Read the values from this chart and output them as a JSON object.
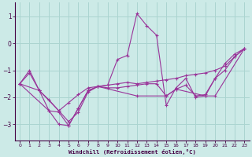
{
  "xlabel": "Windchill (Refroidissement éolien,°C)",
  "background_color": "#cceae7",
  "grid_color": "#aad4d0",
  "line_color": "#993399",
  "xlim": [
    -0.5,
    23.5
  ],
  "ylim": [
    -3.6,
    1.5
  ],
  "yticks": [
    -3,
    -2,
    -1,
    0,
    1
  ],
  "xticks": [
    0,
    1,
    2,
    3,
    4,
    5,
    6,
    7,
    8,
    9,
    10,
    11,
    12,
    13,
    14,
    15,
    16,
    17,
    18,
    19,
    20,
    21,
    22,
    23
  ],
  "series1": [
    [
      0,
      -1.5
    ],
    [
      1,
      -1.0
    ],
    [
      2,
      -1.75
    ],
    [
      3,
      -2.5
    ],
    [
      4,
      -3.0
    ],
    [
      5,
      -3.05
    ],
    [
      6,
      -2.4
    ],
    [
      7,
      -1.75
    ],
    [
      8,
      -1.6
    ],
    [
      9,
      -1.55
    ],
    [
      10,
      -0.6
    ],
    [
      11,
      -0.45
    ],
    [
      12,
      1.1
    ],
    [
      13,
      0.65
    ],
    [
      14,
      0.3
    ],
    [
      15,
      -2.3
    ],
    [
      16,
      -1.65
    ],
    [
      17,
      -1.3
    ],
    [
      18,
      -2.0
    ],
    [
      19,
      -1.95
    ],
    [
      20,
      -1.3
    ],
    [
      21,
      -0.75
    ],
    [
      22,
      -0.4
    ],
    [
      23,
      -0.2
    ]
  ],
  "series2": [
    [
      0,
      -1.5
    ],
    [
      1,
      -1.1
    ],
    [
      2,
      -1.75
    ],
    [
      3,
      -2.1
    ],
    [
      4,
      -2.5
    ],
    [
      5,
      -2.2
    ],
    [
      6,
      -1.9
    ],
    [
      7,
      -1.65
    ],
    [
      8,
      -1.6
    ],
    [
      9,
      -1.55
    ],
    [
      10,
      -1.5
    ],
    [
      11,
      -1.45
    ],
    [
      12,
      -1.5
    ],
    [
      13,
      -1.45
    ],
    [
      14,
      -1.4
    ],
    [
      15,
      -1.35
    ],
    [
      16,
      -1.3
    ],
    [
      17,
      -1.2
    ],
    [
      18,
      -1.15
    ],
    [
      19,
      -1.1
    ],
    [
      20,
      -1.0
    ],
    [
      21,
      -0.85
    ],
    [
      22,
      -0.5
    ],
    [
      23,
      -0.2
    ]
  ],
  "series3": [
    [
      0,
      -1.5
    ],
    [
      2,
      -1.75
    ],
    [
      4,
      -2.5
    ],
    [
      5,
      -2.9
    ],
    [
      6,
      -2.55
    ],
    [
      7,
      -1.8
    ],
    [
      8,
      -1.6
    ],
    [
      9,
      -1.65
    ],
    [
      10,
      -1.65
    ],
    [
      11,
      -1.6
    ],
    [
      12,
      -1.55
    ],
    [
      13,
      -1.5
    ],
    [
      14,
      -1.5
    ],
    [
      15,
      -1.95
    ],
    [
      16,
      -1.7
    ],
    [
      17,
      -1.55
    ],
    [
      18,
      -1.95
    ],
    [
      19,
      -1.9
    ],
    [
      20,
      -1.3
    ],
    [
      21,
      -1.0
    ],
    [
      22,
      -0.5
    ],
    [
      23,
      -0.2
    ]
  ],
  "series4": [
    [
      0,
      -1.5
    ],
    [
      3,
      -2.5
    ],
    [
      4,
      -2.55
    ],
    [
      5,
      -3.05
    ],
    [
      6,
      -2.4
    ],
    [
      7,
      -1.75
    ],
    [
      8,
      -1.6
    ],
    [
      12,
      -1.95
    ],
    [
      15,
      -1.95
    ],
    [
      16,
      -1.7
    ],
    [
      19,
      -1.95
    ],
    [
      20,
      -1.95
    ],
    [
      23,
      -0.2
    ]
  ]
}
